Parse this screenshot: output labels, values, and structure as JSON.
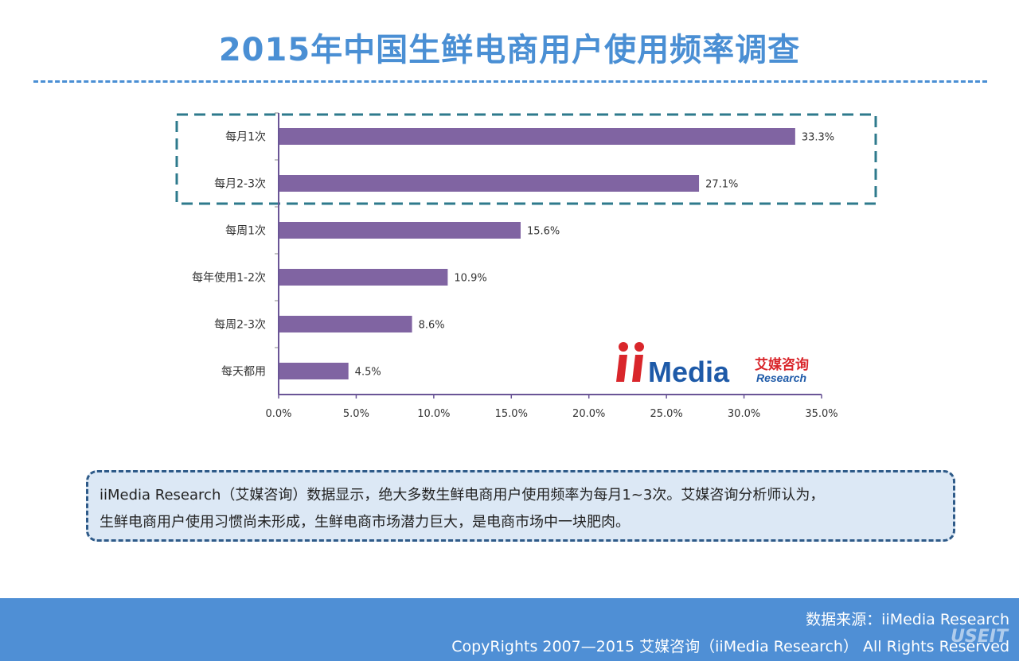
{
  "page": {
    "title": "2015年中国生鲜电商用户使用频率调查"
  },
  "chart_data": {
    "type": "bar",
    "orientation": "horizontal",
    "categories": [
      "每月1次",
      "每月2-3次",
      "每周1次",
      "每年使用1-2次",
      "每周2-3次",
      "每天都用"
    ],
    "values": [
      33.3,
      27.1,
      15.6,
      10.9,
      8.6,
      4.5
    ],
    "value_labels": [
      "33.3%",
      "27.1%",
      "15.6%",
      "10.9%",
      "8.6%",
      "4.5%"
    ],
    "xlim": [
      0,
      35
    ],
    "xticks": [
      0,
      5,
      10,
      15,
      20,
      25,
      30,
      35
    ],
    "xtick_labels": [
      "0.0%",
      "5.0%",
      "10.0%",
      "15.0%",
      "20.0%",
      "25.0%",
      "30.0%",
      "35.0%"
    ],
    "bar_color": "#8064a2",
    "highlight_categories": [
      "每月1次",
      "每月2-3次"
    ],
    "highlight_color": "#2e7a8c",
    "grid": false
  },
  "logo": {
    "brand": "Media",
    "cn": "艾媒咨询",
    "en": "Research"
  },
  "note": {
    "line1": "iiMedia  Research（艾媒咨询）数据显示，绝大多数生鲜电商用户使用频率为每月1~3次。艾媒咨询分析师认为，",
    "line2": "生鲜电商用户使用习惯尚未形成，生鲜电商市场潜力巨大，是电商市场中一块肥肉。"
  },
  "footer": {
    "source": "数据来源：iiMedia Research",
    "copyright": "CopyRights 2007—2015 艾媒咨询（iiMedia Research） All Rights Reserved",
    "watermark": "USEIT"
  },
  "colors": {
    "title": "#4a8fd4",
    "footer_bg": "#4f8fd5",
    "note_bg": "#dce8f5",
    "note_border": "#2e5a88",
    "logo_red": "#d9262b",
    "logo_blue": "#1e5aa8"
  }
}
